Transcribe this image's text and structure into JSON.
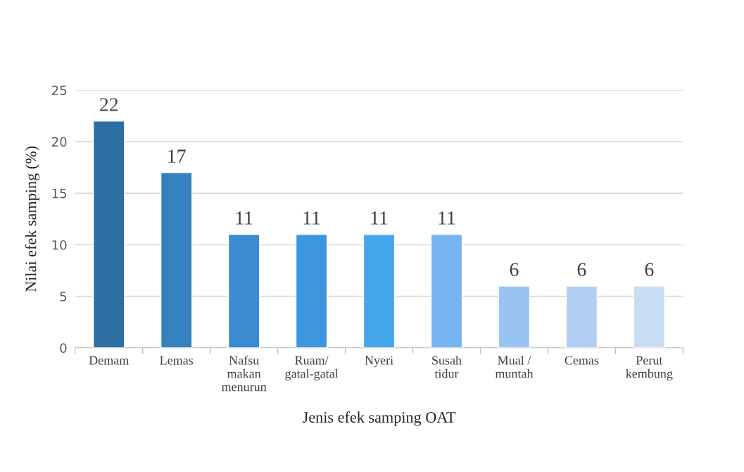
{
  "chart_data": {
    "type": "bar",
    "xlabel": "Jenis efek samping OAT",
    "ylabel": "Nilai efek samping (%)",
    "categories": [
      "Demam",
      "Lemas",
      "Nafsu\nmakan\nmenurun",
      "Ruam/\ngatal-gatal",
      "Nyeri",
      "Susah\ntidur",
      "Mual /\nmuntah",
      "Cemas",
      "Perut\nkembung"
    ],
    "values": [
      22,
      17,
      11,
      11,
      11,
      11,
      6,
      6,
      6
    ],
    "colors": [
      "#2d6fa3",
      "#3481bd",
      "#3a8bd0",
      "#3d97de",
      "#46a6ec",
      "#76b3f1",
      "#98c4f1",
      "#b2cff3",
      "#c8dcf4"
    ],
    "ylim": [
      0,
      25
    ],
    "yticks": [
      0,
      5,
      10,
      15,
      20,
      25
    ],
    "grid": "y",
    "data_labels": true
  }
}
